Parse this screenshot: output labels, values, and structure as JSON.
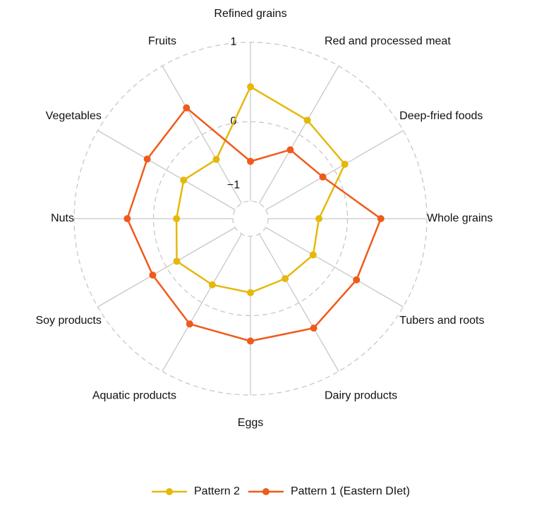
{
  "chart_data": {
    "type": "radar",
    "categories": [
      "Refined grains",
      "Red and processed meat",
      "Deep-fried foods",
      "Whole grains",
      "Tubers and roots",
      "Dairy products",
      "Eggs",
      "Aquatic products",
      "Soy products",
      "Nuts",
      "Vegetables",
      "Fruits"
    ],
    "series": [
      {
        "name": "Pattern 2",
        "color": "#e5b80b",
        "values": [
          0.44,
          0.21,
          0.15,
          -0.36,
          -0.31,
          -0.35,
          -0.29,
          -0.26,
          -0.15,
          -0.29,
          -0.25,
          -0.36
        ]
      },
      {
        "name": "Pattern 1 (Eastern DIet)",
        "color": "#f05a1a",
        "values": [
          -0.5,
          -0.22,
          -0.17,
          0.42,
          0.32,
          0.37,
          0.32,
          0.31,
          0.2,
          0.33,
          0.28,
          0.39
        ]
      }
    ],
    "ylim": [
      -1,
      1
    ],
    "yticks": [
      {
        "value": -1,
        "label": "−1"
      },
      0,
      1
    ],
    "grid": true,
    "legend": "bottom"
  }
}
